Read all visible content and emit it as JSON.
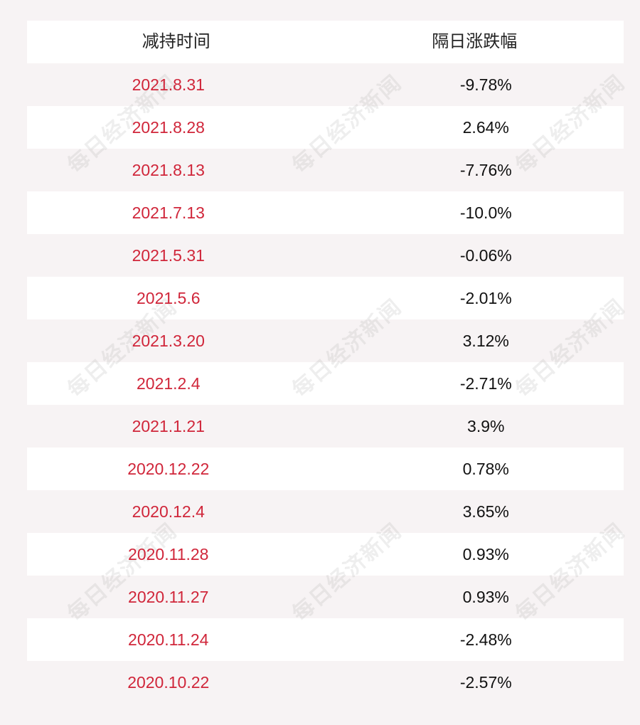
{
  "table": {
    "headers": {
      "date": "减持时间",
      "change": "隔日涨跌幅"
    },
    "rows": [
      {
        "date": "2021.8.31",
        "change": "-9.78%"
      },
      {
        "date": "2021.8.28",
        "change": "2.64%"
      },
      {
        "date": "2021.8.13",
        "change": "-7.76%"
      },
      {
        "date": "2021.7.13",
        "change": "-10.0%"
      },
      {
        "date": "2021.5.31",
        "change": "-0.06%"
      },
      {
        "date": "2021.5.6",
        "change": "-2.01%"
      },
      {
        "date": "2021.3.20",
        "change": "3.12%"
      },
      {
        "date": "2021.2.4",
        "change": "-2.71%"
      },
      {
        "date": "2021.1.21",
        "change": "3.9%"
      },
      {
        "date": "2020.12.22",
        "change": "0.78%"
      },
      {
        "date": "2020.12.4",
        "change": "3.65%"
      },
      {
        "date": "2020.11.28",
        "change": "0.93%"
      },
      {
        "date": "2020.11.27",
        "change": "0.93%"
      },
      {
        "date": "2020.11.24",
        "change": "-2.48%"
      },
      {
        "date": "2020.10.22",
        "change": "-2.57%"
      }
    ]
  },
  "watermark": {
    "text": "每日经济新闻"
  },
  "colors": {
    "date_text": "#d0263a",
    "row_white": "#ffffff",
    "row_alt": "#f7f3f4"
  }
}
